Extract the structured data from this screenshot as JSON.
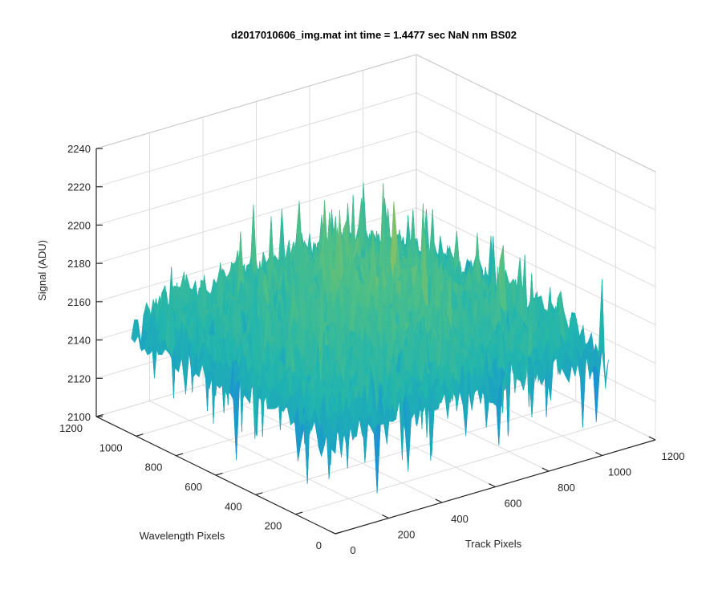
{
  "chart_data": {
    "type": "surface",
    "title": "d2017010606_img.mat int time = 1.4477 sec  NaN nm BS02",
    "xlabel": "Track Pixels",
    "ylabel": "Wavelength Pixels",
    "zlabel": "Signal (ADU)",
    "x_ticks": [
      "0",
      "200",
      "400",
      "600",
      "800",
      "1000",
      "1200"
    ],
    "y_ticks": [
      "0",
      "200",
      "400",
      "600",
      "800",
      "1000",
      "1200"
    ],
    "z_ticks": [
      "2100",
      "2120",
      "2140",
      "2160",
      "2180",
      "2200",
      "2220",
      "2240"
    ],
    "xlim": [
      0,
      1200
    ],
    "ylim": [
      0,
      1200
    ],
    "zlim": [
      2100,
      2240
    ],
    "data_extent": {
      "x": [
        0,
        1024
      ],
      "y": [
        0,
        1024
      ]
    },
    "signal_mean": 2168,
    "signal_min": 2112,
    "signal_max": 2228,
    "colormap": [
      "#1e46c8",
      "#1a8fd6",
      "#20b4b0",
      "#4fbf86",
      "#9ac05a",
      "#e8c43c"
    ],
    "grid": true,
    "box": true
  }
}
